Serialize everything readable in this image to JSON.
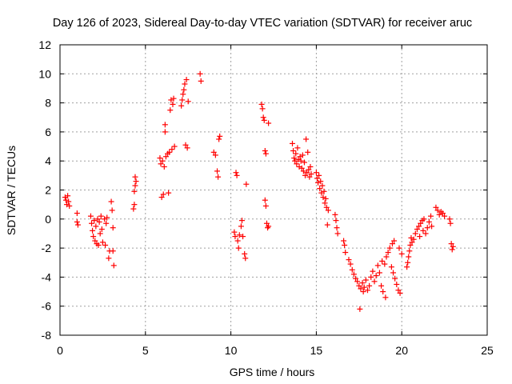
{
  "chart_data": {
    "type": "scatter",
    "title": "Day 126 of 2023, Sidereal Day-to-day VTEC variation (SDTVAR) for receiver aruc",
    "xlabel": "GPS time / hours",
    "ylabel": "SDTVAR / TECUs",
    "xlim": [
      0,
      25
    ],
    "ylim": [
      -8,
      12
    ],
    "x_ticks": [
      0,
      5,
      10,
      15,
      20,
      25
    ],
    "y_ticks": [
      -8,
      -6,
      -4,
      -2,
      0,
      2,
      4,
      6,
      8,
      10,
      12
    ],
    "x_tick_labels": [
      "0",
      "5",
      "10",
      "15",
      "20",
      "25"
    ],
    "y_tick_labels": [
      "-8",
      "-6",
      "-4",
      "-2",
      "0",
      "2",
      "4",
      "6",
      "8",
      "10",
      "12"
    ],
    "grid": true,
    "marker": "+",
    "marker_color": "#ff0000",
    "series": [
      {
        "name": "SDTVAR",
        "points": [
          [
            0.3,
            1.5
          ],
          [
            0.35,
            1.3
          ],
          [
            0.4,
            1.0
          ],
          [
            0.45,
            1.6
          ],
          [
            0.5,
            1.2
          ],
          [
            0.55,
            0.9
          ],
          [
            1.0,
            0.4
          ],
          [
            1.0,
            -0.2
          ],
          [
            1.05,
            -0.4
          ],
          [
            1.8,
            0.2
          ],
          [
            1.85,
            -0.3
          ],
          [
            1.9,
            -0.8
          ],
          [
            1.95,
            -1.2
          ],
          [
            2.0,
            -0.1
          ],
          [
            2.05,
            -1.5
          ],
          [
            2.1,
            -0.5
          ],
          [
            2.15,
            -1.7
          ],
          [
            2.2,
            0.0
          ],
          [
            2.25,
            -1.8
          ],
          [
            2.3,
            -0.2
          ],
          [
            2.35,
            -1.0
          ],
          [
            2.4,
            0.2
          ],
          [
            2.45,
            -0.7
          ],
          [
            2.5,
            -1.6
          ],
          [
            2.6,
            0.0
          ],
          [
            2.65,
            -1.8
          ],
          [
            2.7,
            -0.3
          ],
          [
            2.75,
            0.1
          ],
          [
            2.85,
            -2.7
          ],
          [
            2.9,
            -2.2
          ],
          [
            3.0,
            1.2
          ],
          [
            3.05,
            0.6
          ],
          [
            3.1,
            -0.6
          ],
          [
            3.1,
            -2.2
          ],
          [
            3.15,
            -3.2
          ],
          [
            4.3,
            0.7
          ],
          [
            4.35,
            1.0
          ],
          [
            4.35,
            1.9
          ],
          [
            4.4,
            2.3
          ],
          [
            4.4,
            2.9
          ],
          [
            4.45,
            2.6
          ],
          [
            5.85,
            4.2
          ],
          [
            5.9,
            3.8
          ],
          [
            5.95,
            1.5
          ],
          [
            6.0,
            4.0
          ],
          [
            6.05,
            1.7
          ],
          [
            6.1,
            3.6
          ],
          [
            6.15,
            6.5
          ],
          [
            6.15,
            6.0
          ],
          [
            6.2,
            4.3
          ],
          [
            6.3,
            4.5
          ],
          [
            6.35,
            1.8
          ],
          [
            6.4,
            4.6
          ],
          [
            6.45,
            7.5
          ],
          [
            6.5,
            8.2
          ],
          [
            6.55,
            4.8
          ],
          [
            6.6,
            7.9
          ],
          [
            6.65,
            8.3
          ],
          [
            6.7,
            5.0
          ],
          [
            7.1,
            7.8
          ],
          [
            7.15,
            8.2
          ],
          [
            7.2,
            8.6
          ],
          [
            7.25,
            8.9
          ],
          [
            7.3,
            9.3
          ],
          [
            7.35,
            5.1
          ],
          [
            7.4,
            9.6
          ],
          [
            7.45,
            4.9
          ],
          [
            7.5,
            8.1
          ],
          [
            8.2,
            10.0
          ],
          [
            8.25,
            9.5
          ],
          [
            9.0,
            4.6
          ],
          [
            9.1,
            4.4
          ],
          [
            9.2,
            3.3
          ],
          [
            9.25,
            2.9
          ],
          [
            9.3,
            5.5
          ],
          [
            9.35,
            5.7
          ],
          [
            10.2,
            -0.9
          ],
          [
            10.25,
            -1.2
          ],
          [
            10.3,
            3.2
          ],
          [
            10.35,
            3.0
          ],
          [
            10.4,
            -1.5
          ],
          [
            10.45,
            -2.0
          ],
          [
            10.5,
            -1.1
          ],
          [
            10.6,
            -0.5
          ],
          [
            10.65,
            -0.1
          ],
          [
            10.7,
            -1.2
          ],
          [
            10.8,
            -2.4
          ],
          [
            10.85,
            -2.7
          ],
          [
            10.9,
            2.4
          ],
          [
            11.8,
            7.9
          ],
          [
            11.85,
            7.6
          ],
          [
            11.9,
            7.0
          ],
          [
            11.95,
            6.8
          ],
          [
            12.0,
            1.3
          ],
          [
            12.05,
            0.9
          ],
          [
            12.0,
            4.7
          ],
          [
            12.05,
            4.5
          ],
          [
            12.1,
            -0.3
          ],
          [
            12.15,
            -0.6
          ],
          [
            12.2,
            6.6
          ],
          [
            12.2,
            -0.5
          ],
          [
            13.6,
            5.2
          ],
          [
            13.65,
            4.7
          ],
          [
            13.7,
            4.2
          ],
          [
            13.75,
            4.0
          ],
          [
            13.8,
            4.5
          ],
          [
            13.85,
            3.8
          ],
          [
            13.9,
            4.9
          ],
          [
            13.95,
            4.1
          ],
          [
            14.0,
            3.6
          ],
          [
            14.05,
            4.3
          ],
          [
            14.1,
            4.0
          ],
          [
            14.15,
            3.5
          ],
          [
            14.2,
            4.4
          ],
          [
            14.25,
            3.3
          ],
          [
            14.3,
            3.9
          ],
          [
            14.35,
            3.0
          ],
          [
            14.4,
            5.5
          ],
          [
            14.45,
            3.2
          ],
          [
            14.5,
            4.6
          ],
          [
            14.55,
            3.4
          ],
          [
            14.6,
            2.9
          ],
          [
            14.65,
            3.6
          ],
          [
            14.7,
            3.1
          ],
          [
            15.0,
            3.2
          ],
          [
            15.05,
            2.8
          ],
          [
            15.1,
            2.5
          ],
          [
            15.15,
            3.0
          ],
          [
            15.2,
            2.1
          ],
          [
            15.25,
            2.6
          ],
          [
            15.3,
            1.8
          ],
          [
            15.35,
            2.3
          ],
          [
            15.4,
            1.5
          ],
          [
            15.45,
            1.9
          ],
          [
            15.5,
            1.1
          ],
          [
            15.55,
            1.4
          ],
          [
            15.6,
            0.8
          ],
          [
            15.65,
            -0.4
          ],
          [
            15.7,
            0.6
          ],
          [
            16.1,
            0.3
          ],
          [
            16.15,
            -0.1
          ],
          [
            16.2,
            -0.6
          ],
          [
            16.25,
            -1.0
          ],
          [
            16.6,
            -1.5
          ],
          [
            16.65,
            -1.8
          ],
          [
            16.7,
            -2.3
          ],
          [
            16.9,
            -2.8
          ],
          [
            17.0,
            -3.1
          ],
          [
            17.1,
            -3.5
          ],
          [
            17.2,
            -3.8
          ],
          [
            17.3,
            -4.1
          ],
          [
            17.4,
            -4.3
          ],
          [
            17.5,
            -4.6
          ],
          [
            17.55,
            -6.2
          ],
          [
            17.6,
            -4.8
          ],
          [
            17.7,
            -4.4
          ],
          [
            17.75,
            -5.0
          ],
          [
            17.8,
            -4.7
          ],
          [
            17.9,
            -4.2
          ],
          [
            18.0,
            -4.9
          ],
          [
            18.1,
            -4.6
          ],
          [
            18.2,
            -4.0
          ],
          [
            18.3,
            -3.6
          ],
          [
            18.4,
            -4.3
          ],
          [
            18.5,
            -3.9
          ],
          [
            18.6,
            -3.2
          ],
          [
            18.7,
            -3.7
          ],
          [
            18.8,
            -4.6
          ],
          [
            18.85,
            -2.9
          ],
          [
            18.9,
            -5.0
          ],
          [
            19.0,
            -3.1
          ],
          [
            19.05,
            -5.4
          ],
          [
            19.1,
            -2.6
          ],
          [
            19.2,
            -2.3
          ],
          [
            19.3,
            -2.0
          ],
          [
            19.4,
            -3.3
          ],
          [
            19.45,
            -1.7
          ],
          [
            19.5,
            -3.7
          ],
          [
            19.55,
            -1.5
          ],
          [
            19.6,
            -4.1
          ],
          [
            19.7,
            -4.5
          ],
          [
            19.8,
            -4.9
          ],
          [
            19.85,
            -2.0
          ],
          [
            19.9,
            -5.1
          ],
          [
            20.0,
            -2.4
          ],
          [
            20.3,
            -3.3
          ],
          [
            20.35,
            -3.0
          ],
          [
            20.4,
            -2.6
          ],
          [
            20.45,
            -2.2
          ],
          [
            20.5,
            -1.8
          ],
          [
            20.55,
            -1.3
          ],
          [
            20.6,
            -1.6
          ],
          [
            20.7,
            -1.4
          ],
          [
            20.8,
            -1.0
          ],
          [
            20.9,
            -0.7
          ],
          [
            21.0,
            -0.5
          ],
          [
            21.05,
            -1.2
          ],
          [
            21.1,
            -0.3
          ],
          [
            21.2,
            -0.1
          ],
          [
            21.25,
            -0.8
          ],
          [
            21.3,
            0.0
          ],
          [
            21.4,
            -1.0
          ],
          [
            21.5,
            -0.6
          ],
          [
            21.6,
            -0.2
          ],
          [
            21.7,
            0.2
          ],
          [
            21.75,
            -0.5
          ],
          [
            22.0,
            0.8
          ],
          [
            22.1,
            0.6
          ],
          [
            22.2,
            0.3
          ],
          [
            22.3,
            0.5
          ],
          [
            22.4,
            0.4
          ],
          [
            22.5,
            0.2
          ],
          [
            22.8,
            0.0
          ],
          [
            22.85,
            -0.3
          ],
          [
            22.9,
            -1.7
          ],
          [
            22.95,
            -2.1
          ],
          [
            23.0,
            -1.9
          ]
        ]
      }
    ]
  }
}
